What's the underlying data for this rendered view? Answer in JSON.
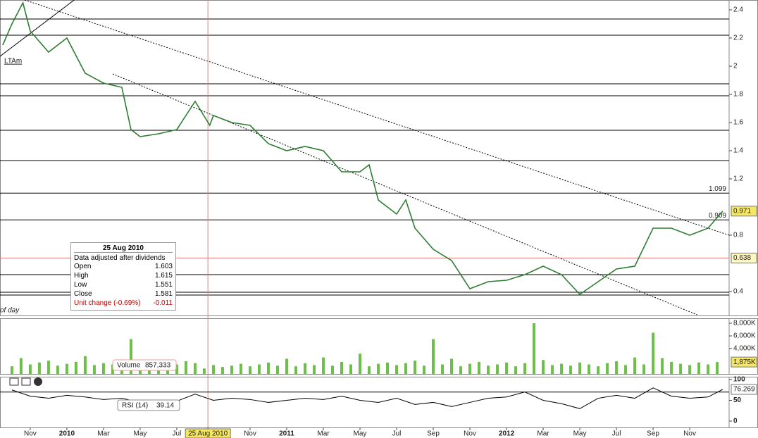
{
  "chart_data": [
    {
      "type": "line",
      "name": "price",
      "color": "#2e7d32",
      "x": [
        -0.5,
        0,
        0.6,
        1,
        2,
        3,
        4,
        5,
        6,
        6.5,
        7,
        8,
        9,
        10,
        10.8,
        11,
        12,
        13,
        14,
        15,
        16,
        17,
        18,
        19,
        19.5,
        20,
        21,
        21.5,
        22,
        23,
        24,
        25,
        26,
        27,
        28,
        29,
        30,
        31,
        32,
        33,
        34,
        35,
        36,
        37,
        38,
        38.8
      ],
      "values": [
        2.15,
        2.3,
        2.45,
        2.25,
        2.1,
        2.2,
        1.95,
        1.88,
        1.85,
        1.55,
        1.5,
        1.52,
        1.55,
        1.75,
        1.581,
        1.65,
        1.6,
        1.58,
        1.45,
        1.4,
        1.43,
        1.4,
        1.25,
        1.25,
        1.3,
        1.05,
        0.95,
        1.05,
        0.85,
        0.7,
        0.62,
        0.42,
        0.47,
        0.48,
        0.52,
        0.58,
        0.52,
        0.38,
        0.47,
        0.56,
        0.58,
        0.85,
        0.85,
        0.8,
        0.85,
        0.971
      ],
      "xlim": [
        -0.65,
        39.15
      ],
      "ylim": [
        0.23,
        2.47
      ],
      "yticks": [
        2.4,
        2.2,
        2,
        1.8,
        1.6,
        1.4,
        1.2,
        0.8,
        0.4
      ],
      "levels": [
        2.335,
        2.22,
        1.875,
        1.79,
        1.545,
        1.33,
        {
          "value": 1.099,
          "label": "1.099"
        },
        {
          "value": 0.909,
          "label": "0.909"
        },
        0.52,
        0.395,
        0.375
      ],
      "trendlines": [
        {
          "x": [
            0.7,
            39.15
          ],
          "y": [
            2.47,
            0.8
          ],
          "style": "dotted"
        },
        {
          "x": [
            5.5,
            37.4
          ],
          "y": [
            1.945,
            0.235
          ],
          "style": "dotted"
        },
        {
          "x": [
            -0.65,
            3.4
          ],
          "y": [
            2.07,
            2.47
          ],
          "style": "solid"
        }
      ],
      "markers": [
        {
          "value": 0.971,
          "label": "0.971",
          "color": "#f5e663"
        },
        {
          "value": 0.638,
          "label": "0.638",
          "color": "#fff7c0"
        }
      ],
      "crosshair": {
        "x": 10.7,
        "y": 0.638
      },
      "annotations": [
        "LTAm",
        "of day"
      ],
      "tooltip": {
        "title": "25 Aug 2010",
        "note": "Data adjusted after dividends",
        "rows": [
          [
            "Open",
            1.603
          ],
          [
            "High",
            1.615
          ],
          [
            "Low",
            1.551
          ],
          [
            "Close",
            1.581
          ]
        ],
        "change": [
          "Unit change (-0.69%)",
          -0.011
        ]
      }
    },
    {
      "type": "bar",
      "name": "Volume",
      "color": "#6cc04a",
      "x": [
        0,
        0.5,
        1,
        1.5,
        2,
        2.5,
        3,
        3.5,
        4,
        4.5,
        5,
        5.5,
        6,
        6.5,
        7,
        7.5,
        8,
        8.5,
        9,
        9.5,
        10,
        10.5,
        11,
        11.5,
        12,
        12.5,
        13,
        13.5,
        14,
        14.5,
        15,
        15.5,
        16,
        16.5,
        17,
        17.5,
        18,
        18.5,
        19,
        19.5,
        20,
        20.5,
        21,
        21.5,
        22,
        22.5,
        23,
        23.5,
        24,
        24.5,
        25,
        25.5,
        26,
        26.5,
        27,
        27.5,
        28,
        28.5,
        29,
        29.5,
        30,
        30.5,
        31,
        31.5,
        32,
        32.5,
        33,
        33.5,
        34,
        34.5,
        35,
        35.5,
        36,
        36.5,
        37,
        37.5,
        38,
        38.5
      ],
      "values": [
        1200000,
        2500000,
        1500000,
        1800000,
        2100000,
        1300000,
        1600000,
        1900000,
        2800000,
        1400000,
        1700000,
        1500000,
        2200000,
        5500000,
        1300000,
        1600000,
        1200000,
        1800000,
        1500000,
        2000000,
        1700000,
        857333,
        1400000,
        1100000,
        1300000,
        1600000,
        1200000,
        1500000,
        1800000,
        1300000,
        2400000,
        1200000,
        1700000,
        1400000,
        2600000,
        1300000,
        1900000,
        1500000,
        3200000,
        1200000,
        1600000,
        1800000,
        1400000,
        1700000,
        2100000,
        1300000,
        5500000,
        1500000,
        2400000,
        1200000,
        1600000,
        1900000,
        1300000,
        1500000,
        1800000,
        1200000,
        1700000,
        8000000,
        2200000,
        1400000,
        1600000,
        1300000,
        1800000,
        1500000,
        1200000,
        1700000,
        2000000,
        1400000,
        2600000,
        1500000,
        6500000,
        2500000,
        1900000,
        1600000,
        1400000,
        1800000,
        1500000,
        1875000
      ],
      "xlim": [
        -0.65,
        39.15
      ],
      "ylim": [
        0,
        8780000
      ],
      "yticks": [
        {
          "value": 8000000,
          "label": "8,000K"
        },
        {
          "value": 6000000,
          "label": "6,000K"
        },
        {
          "value": 4000000,
          "label": "4,000K"
        }
      ],
      "markers": [
        {
          "value": 1875000,
          "label": "1,875K",
          "color": "#f5e663"
        }
      ],
      "current": {
        "value": 857333,
        "label": "857,333"
      }
    },
    {
      "type": "line",
      "name": "RSI (14)",
      "color": "#000000",
      "x": [
        0,
        1,
        2,
        3,
        4,
        5,
        6,
        7,
        8,
        9,
        10,
        11,
        12,
        13,
        14,
        15,
        16,
        17,
        18,
        19,
        20,
        21,
        22,
        23,
        24,
        25,
        26,
        27,
        28,
        29,
        30,
        31,
        32,
        33,
        34,
        35,
        36,
        37,
        38,
        38.8
      ],
      "values": [
        75,
        60,
        55,
        62,
        58,
        52,
        55,
        45,
        40,
        48,
        65,
        50,
        55,
        52,
        45,
        50,
        55,
        52,
        60,
        50,
        45,
        55,
        40,
        45,
        35,
        45,
        55,
        58,
        70,
        50,
        42,
        30,
        55,
        62,
        55,
        80,
        60,
        55,
        58,
        76.269
      ],
      "xlim": [
        -0.65,
        39.15
      ],
      "ylim": [
        -15.3,
        106.8
      ],
      "yticks": [
        100,
        50,
        0
      ],
      "levels": [
        70
      ],
      "markers": [
        {
          "value": 76.269,
          "label": "76.269",
          "color": "#ffffff"
        }
      ],
      "current": 39.14,
      "xticks": [
        {
          "value": 1,
          "label": "Nov"
        },
        {
          "value": 3,
          "label": "2010"
        },
        {
          "value": 5,
          "label": "Mar"
        },
        {
          "value": 7,
          "label": "May"
        },
        {
          "value": 9,
          "label": "Jul"
        },
        {
          "value": 10.7,
          "label": "25 Aug 2010"
        },
        {
          "value": 13,
          "label": "Nov"
        },
        {
          "value": 15,
          "label": "2011"
        },
        {
          "value": 17,
          "label": "Mar"
        },
        {
          "value": 19,
          "label": "May"
        },
        {
          "value": 21,
          "label": "Jul"
        },
        {
          "value": 23,
          "label": "Sep"
        },
        {
          "value": 25,
          "label": "Nov"
        },
        {
          "value": 27,
          "label": "2012"
        },
        {
          "value": 29,
          "label": "Mar"
        },
        {
          "value": 31,
          "label": "May"
        },
        {
          "value": 33,
          "label": "Jul"
        },
        {
          "value": 35,
          "label": "Sep"
        },
        {
          "value": 37,
          "label": "Nov"
        }
      ]
    }
  ]
}
